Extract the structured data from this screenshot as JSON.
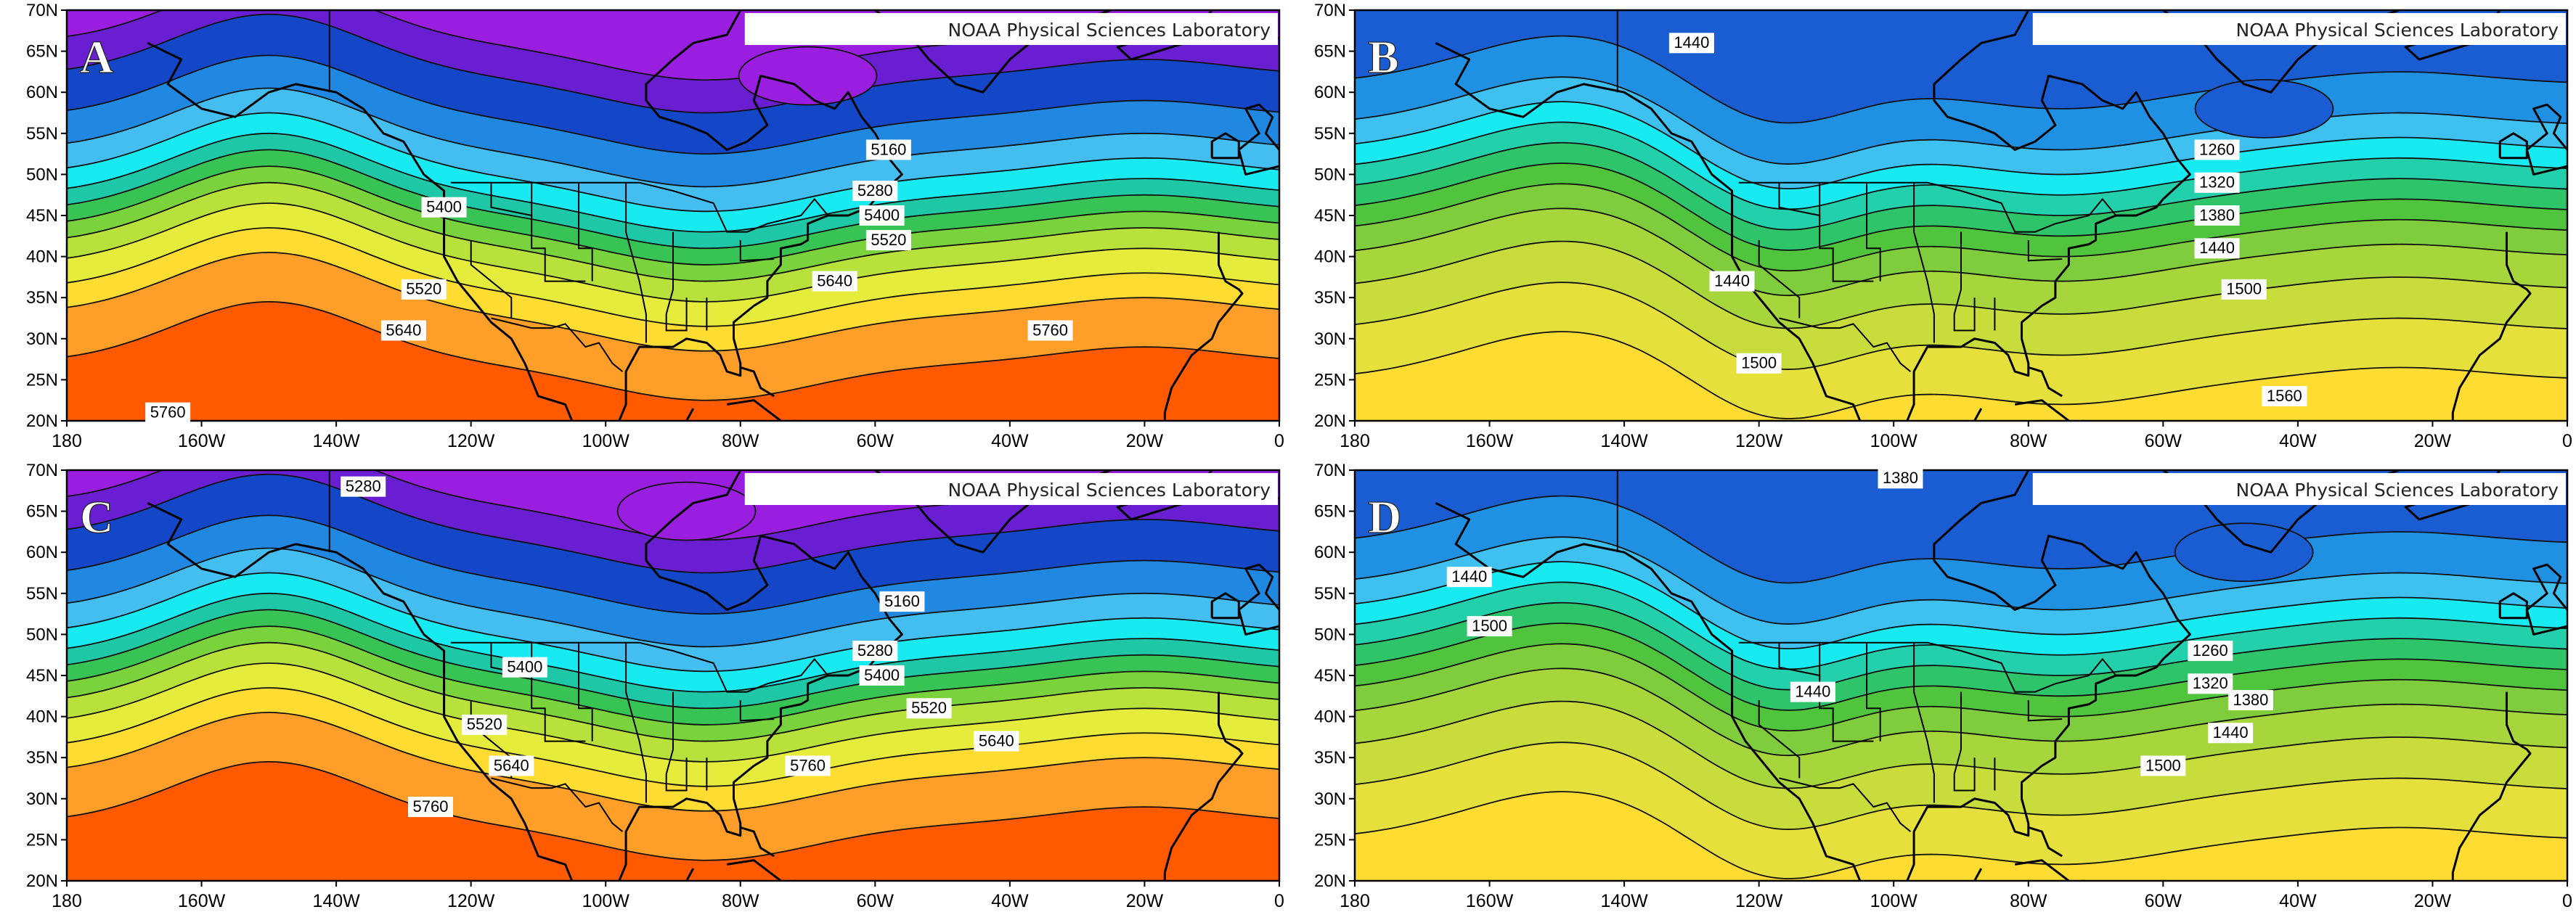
{
  "x_ticks": [
    "180",
    "160W",
    "140W",
    "120W",
    "100W",
    "80W",
    "60W",
    "40W",
    "20W",
    "0"
  ],
  "y_ticks": [
    "20N",
    "25N",
    "30N",
    "35N",
    "40N",
    "45N",
    "50N",
    "55N",
    "60N",
    "65N",
    "70N"
  ],
  "source_label": "NOAA Physical Sciences Laboratory",
  "panels": [
    {
      "label": "A",
      "field": "height",
      "low_center": [
        -70,
        62
      ],
      "contour_labels": [
        {
          "text": "5160",
          "lon": -58,
          "lat": 53
        },
        {
          "text": "5280",
          "lon": -60,
          "lat": 48
        },
        {
          "text": "5400",
          "lon": -59,
          "lat": 45
        },
        {
          "text": "5520",
          "lon": -58,
          "lat": 42
        },
        {
          "text": "5640",
          "lon": -66,
          "lat": 37
        },
        {
          "text": "5760",
          "lon": -34,
          "lat": 31
        },
        {
          "text": "5400",
          "lon": -124,
          "lat": 46
        },
        {
          "text": "5520",
          "lon": -127,
          "lat": 36
        },
        {
          "text": "5640",
          "lon": -130,
          "lat": 31
        },
        {
          "text": "5760",
          "lon": -165,
          "lat": 21
        }
      ]
    },
    {
      "label": "B",
      "field": "thickness",
      "low_center": [
        -45,
        58
      ],
      "contour_labels": [
        {
          "text": "1440",
          "lon": -130,
          "lat": 66
        },
        {
          "text": "1260",
          "lon": -52,
          "lat": 53
        },
        {
          "text": "1320",
          "lon": -52,
          "lat": 49
        },
        {
          "text": "1380",
          "lon": -52,
          "lat": 45
        },
        {
          "text": "1440",
          "lon": -52,
          "lat": 41
        },
        {
          "text": "1500",
          "lon": -48,
          "lat": 36
        },
        {
          "text": "1440",
          "lon": -124,
          "lat": 37
        },
        {
          "text": "1500",
          "lon": -120,
          "lat": 27
        },
        {
          "text": "1560",
          "lon": -42,
          "lat": 23
        }
      ]
    },
    {
      "label": "C",
      "field": "height",
      "low_center": [
        -88,
        65
      ],
      "contour_labels": [
        {
          "text": "5280",
          "lon": -136,
          "lat": 68
        },
        {
          "text": "5160",
          "lon": -56,
          "lat": 54
        },
        {
          "text": "5280",
          "lon": -60,
          "lat": 48
        },
        {
          "text": "5400",
          "lon": -59,
          "lat": 45
        },
        {
          "text": "5520",
          "lon": -52,
          "lat": 41
        },
        {
          "text": "5640",
          "lon": -42,
          "lat": 37
        },
        {
          "text": "5760",
          "lon": -70,
          "lat": 34
        },
        {
          "text": "5400",
          "lon": -112,
          "lat": 46
        },
        {
          "text": "5520",
          "lon": -118,
          "lat": 39
        },
        {
          "text": "5640",
          "lon": -114,
          "lat": 34
        },
        {
          "text": "5760",
          "lon": -126,
          "lat": 29
        }
      ]
    },
    {
      "label": "D",
      "field": "thickness",
      "low_center": [
        -48,
        60
      ],
      "contour_labels": [
        {
          "text": "1380",
          "lon": -99,
          "lat": 69
        },
        {
          "text": "1440",
          "lon": -163,
          "lat": 57
        },
        {
          "text": "1500",
          "lon": -160,
          "lat": 51
        },
        {
          "text": "1260",
          "lon": -53,
          "lat": 48
        },
        {
          "text": "1320",
          "lon": -53,
          "lat": 44
        },
        {
          "text": "1380",
          "lon": -47,
          "lat": 42
        },
        {
          "text": "1440",
          "lon": -50,
          "lat": 38
        },
        {
          "text": "1500",
          "lon": -60,
          "lat": 34
        },
        {
          "text": "1440",
          "lon": -112,
          "lat": 43
        }
      ]
    }
  ],
  "palettes": {
    "height": [
      "#ff5a00",
      "#ff9e28",
      "#ffdc32",
      "#e6ec3c",
      "#b8e13c",
      "#7ad23c",
      "#37c455",
      "#1ec8a6",
      "#18eaf2",
      "#44bdf0",
      "#2088e0",
      "#1446c8",
      "#6a1ed2",
      "#9a1ee0"
    ],
    "thickness": [
      "#ffdc32",
      "#e6e03c",
      "#c8dc3c",
      "#a6d63c",
      "#7fcd3c",
      "#4fc43c",
      "#2ec46a",
      "#22d0ac",
      "#18eaf2",
      "#3ec0f0",
      "#2090e2",
      "#1a5cd2"
    ]
  }
}
